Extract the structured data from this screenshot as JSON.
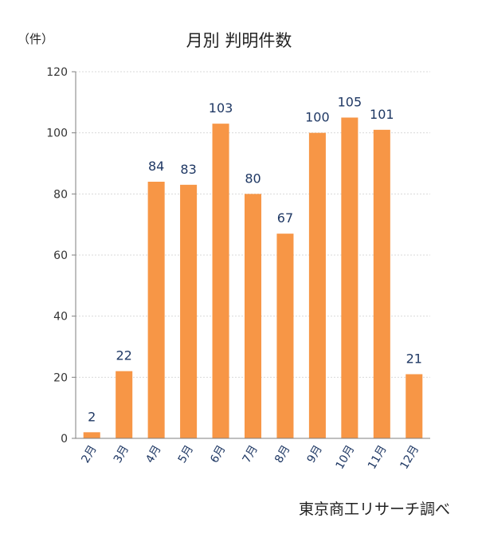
{
  "chart_data": {
    "type": "bar",
    "title": "月別 判明件数",
    "unit_label": "（件）",
    "source": "東京商工リサーチ調べ",
    "categories": [
      "2月",
      "3月",
      "4月",
      "5月",
      "6月",
      "7月",
      "8月",
      "9月",
      "10月",
      "11月",
      "12月"
    ],
    "values": [
      2,
      22,
      84,
      83,
      103,
      80,
      67,
      100,
      105,
      101,
      21
    ],
    "ylim": [
      0,
      120
    ],
    "yticks": [
      0,
      20,
      40,
      60,
      80,
      100,
      120
    ],
    "grid": true,
    "bar_color": "#f79646"
  }
}
